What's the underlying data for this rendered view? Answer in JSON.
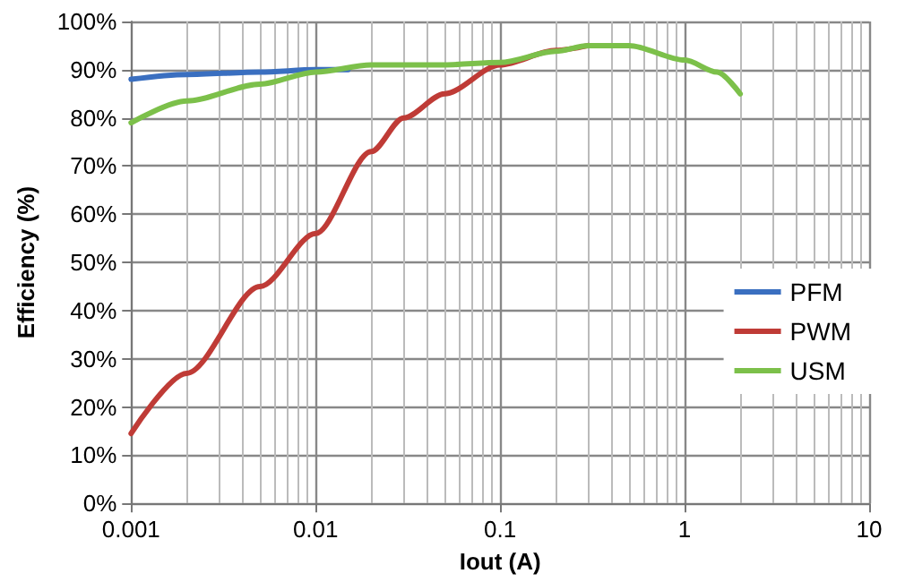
{
  "chart_data": {
    "type": "line",
    "xlabel": "Iout (A)",
    "ylabel": "Efficiency (%)",
    "log": "x",
    "grid": true,
    "legend": "right",
    "marker": "none",
    "line_style": "solid",
    "xlim": [
      0.001,
      10
    ],
    "xticks": [
      0.001,
      0.01,
      0.1,
      1,
      10
    ],
    "ylim": [
      0,
      100
    ],
    "yticks": [
      {
        "value": 0,
        "label": "0%"
      },
      {
        "value": 10,
        "label": "10%"
      },
      {
        "value": 20,
        "label": "20%"
      },
      {
        "value": 30,
        "label": "30%"
      },
      {
        "value": 40,
        "label": "40%"
      },
      {
        "value": 50,
        "label": "50%"
      },
      {
        "value": 60,
        "label": "60%"
      },
      {
        "value": 70,
        "label": "70%"
      },
      {
        "value": 80,
        "label": "80%"
      },
      {
        "value": 90,
        "label": "90%"
      },
      {
        "value": 100,
        "label": "100%"
      }
    ],
    "series": [
      {
        "name": "PFM",
        "color": "#3a6fc0",
        "x": [
          0.001,
          0.002,
          0.005,
          0.01,
          0.015
        ],
        "values": [
          88,
          89,
          89.5,
          90,
          90
        ]
      },
      {
        "name": "PWM",
        "color": "#bf3b36",
        "x": [
          0.001,
          0.002,
          0.005,
          0.01,
          0.02,
          0.03,
          0.05,
          0.1,
          0.2,
          0.3
        ],
        "values": [
          14.5,
          27,
          45,
          56,
          73,
          80,
          85,
          91,
          94,
          95
        ]
      },
      {
        "name": "USM",
        "color": "#7cc04a",
        "x": [
          0.001,
          0.002,
          0.005,
          0.01,
          0.02,
          0.05,
          0.1,
          0.2,
          0.3,
          0.5,
          1,
          1.5,
          2
        ],
        "values": [
          79,
          83.5,
          87,
          89.5,
          91,
          91,
          91.5,
          93.8,
          95,
          95,
          92,
          89.5,
          85
        ]
      }
    ]
  }
}
